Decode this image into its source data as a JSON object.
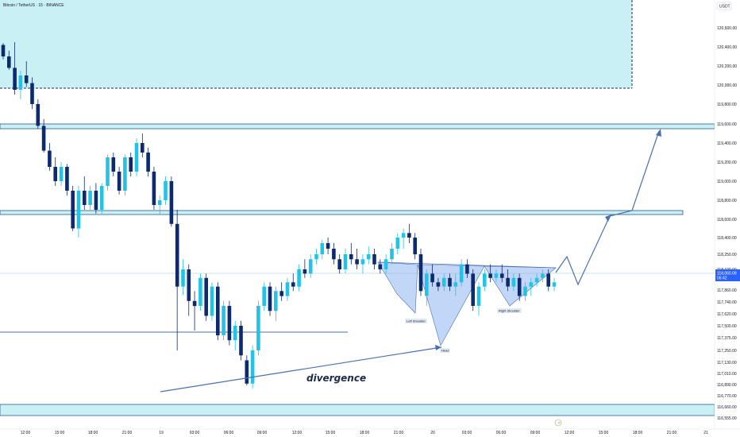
{
  "header": {
    "title": "Bitcoin / TetherUS · 15 · BINANCE",
    "currency": "USDT"
  },
  "colors": {
    "up": "#22c3e6",
    "down": "#0d2a6e",
    "zone_fill": "#c8f0f5",
    "line": "#4a6fb0",
    "pattern_fill": "#8fb4f0",
    "current": "#2962ff"
  },
  "chart_data": {
    "type": "candlestick",
    "y_axis": {
      "min": 116555,
      "max": 120700,
      "ticks": [
        "120,600.00",
        "120,400.00",
        "120,200.00",
        "120,000.00",
        "119,800.00",
        "119,600.00",
        "119,400.00",
        "119,200.00",
        "119,000.00",
        "118,800.00",
        "118,600.00",
        "118,400.00",
        "118,250.00",
        "118,100.00",
        "117,860.00",
        "117,740.00",
        "117,620.00",
        "117,500.00",
        "117,375.00",
        "117,250.00",
        "117,130.00",
        "117,010.00",
        "116,890.00",
        "116,770.00",
        "116,660.00",
        "116,555.00"
      ]
    },
    "x_axis": {
      "ticks": [
        "12:00",
        "15:00",
        "18:00",
        "21:00",
        "19",
        "03:00",
        "06:00",
        "09:00",
        "12:00",
        "15:00",
        "18:00",
        "21:00",
        "20",
        "03:00",
        "06:00",
        "09:00",
        "12:00",
        "15:00",
        "18:00",
        "21:00",
        "21"
      ]
    },
    "current_price": {
      "price": "118,060.09",
      "countdown": "06:42"
    },
    "annotations": {
      "left_shoulder": "Left Shoulder",
      "head": "Head",
      "right_shoulder": "Right Shoulder",
      "divergence": "divergence"
    },
    "candles": [
      [
        120420,
        120440,
        120270,
        120300
      ],
      [
        120300,
        120360,
        120160,
        120180
      ],
      [
        120180,
        120450,
        119900,
        119950
      ],
      [
        119950,
        120150,
        119850,
        120100
      ],
      [
        120100,
        120250,
        119980,
        120020
      ],
      [
        120020,
        120080,
        119750,
        119800
      ],
      [
        119800,
        119850,
        119550,
        119580
      ],
      [
        119580,
        119650,
        119300,
        119320
      ],
      [
        119320,
        119400,
        119110,
        119150
      ],
      [
        119150,
        119250,
        118950,
        119000
      ],
      [
        119000,
        119200,
        118950,
        119150
      ],
      [
        119150,
        119180,
        118850,
        118900
      ],
      [
        118900,
        118950,
        118470,
        118500
      ],
      [
        118500,
        118950,
        118400,
        118900
      ],
      [
        118900,
        119050,
        118700,
        118750
      ],
      [
        118750,
        118950,
        118700,
        118900
      ],
      [
        118900,
        118980,
        118660,
        118700
      ],
      [
        118700,
        118980,
        118650,
        118950
      ],
      [
        118950,
        119280,
        118900,
        119250
      ],
      [
        119250,
        119300,
        119050,
        119100
      ],
      [
        119100,
        119150,
        118860,
        118900
      ],
      [
        118900,
        119280,
        118850,
        119250
      ],
      [
        119250,
        119300,
        119050,
        119100
      ],
      [
        119100,
        119450,
        119050,
        119400
      ],
      [
        119400,
        119500,
        119250,
        119300
      ],
      [
        119300,
        119350,
        119050,
        119100
      ],
      [
        119100,
        119150,
        118700,
        118750
      ],
      [
        118750,
        118850,
        118650,
        118800
      ],
      [
        118800,
        119050,
        118750,
        119000
      ],
      [
        119000,
        119050,
        118520,
        118550
      ],
      [
        118550,
        118700,
        117250,
        117900
      ],
      [
        117900,
        118200,
        117810,
        118100
      ],
      [
        118100,
        118150,
        117600,
        117750
      ],
      [
        117750,
        117850,
        117450,
        117700
      ],
      [
        117700,
        118050,
        117650,
        118000
      ],
      [
        118000,
        118050,
        117550,
        117600
      ],
      [
        117600,
        117950,
        117550,
        117900
      ],
      [
        117900,
        117950,
        117350,
        117400
      ],
      [
        117400,
        117750,
        117350,
        117700
      ],
      [
        117700,
        117750,
        117300,
        117350
      ],
      [
        117350,
        117550,
        117250,
        117500
      ],
      [
        117500,
        117550,
        117150,
        117200
      ],
      [
        117150,
        117200,
        116880,
        116900
      ],
      [
        116900,
        117300,
        116850,
        117250
      ],
      [
        117250,
        117750,
        117200,
        117700
      ],
      [
        117700,
        117950,
        117650,
        117900
      ],
      [
        117900,
        117950,
        117600,
        117650
      ],
      [
        117650,
        117900,
        117550,
        117850
      ],
      [
        117850,
        117950,
        117750,
        117800
      ],
      [
        117800,
        118000,
        117750,
        117950
      ],
      [
        117950,
        118050,
        117850,
        117900
      ],
      [
        117900,
        118150,
        117850,
        118100
      ],
      [
        118100,
        118200,
        118000,
        118050
      ],
      [
        118050,
        118250,
        118000,
        118200
      ],
      [
        118200,
        118300,
        118150,
        118250
      ],
      [
        118250,
        118380,
        118200,
        118350
      ],
      [
        118350,
        118400,
        118250,
        118300
      ],
      [
        118300,
        118350,
        118150,
        118200
      ],
      [
        118200,
        118250,
        118050,
        118100
      ],
      [
        118100,
        118300,
        118050,
        118250
      ],
      [
        118250,
        118350,
        118150,
        118200
      ],
      [
        118200,
        118300,
        118100,
        118150
      ],
      [
        118150,
        118250,
        118050,
        118200
      ],
      [
        118200,
        118320,
        118150,
        118250
      ],
      [
        118250,
        118300,
        118100,
        118150
      ],
      [
        118150,
        118200,
        118050,
        118100
      ],
      [
        118100,
        118250,
        118050,
        118200
      ],
      [
        118200,
        118350,
        118150,
        118300
      ],
      [
        118300,
        118450,
        118250,
        118400
      ],
      [
        118400,
        118500,
        118300,
        118450
      ],
      [
        118450,
        118550,
        118350,
        118400
      ],
      [
        118400,
        118450,
        118200,
        118250
      ],
      [
        118250,
        118300,
        117800,
        117850
      ],
      [
        117800,
        118100,
        117700,
        118050
      ],
      [
        118050,
        118150,
        117900,
        117950
      ],
      [
        117950,
        118000,
        117850,
        117900
      ],
      [
        117900,
        118050,
        117850,
        118000
      ],
      [
        118000,
        118050,
        117850,
        117900
      ],
      [
        117900,
        118050,
        117800,
        117950
      ],
      [
        117950,
        118200,
        117900,
        118150
      ],
      [
        118150,
        118200,
        118000,
        118050
      ],
      [
        118050,
        118100,
        117650,
        117700
      ],
      [
        117700,
        117950,
        117600,
        117900
      ],
      [
        117900,
        118100,
        117850,
        118050
      ],
      [
        118050,
        118150,
        117950,
        118000
      ],
      [
        118000,
        118100,
        117950,
        118050
      ],
      [
        118050,
        118150,
        117950,
        118000
      ],
      [
        118000,
        118100,
        117850,
        117900
      ],
      [
        117900,
        118050,
        117850,
        118000
      ],
      [
        118000,
        118050,
        117750,
        117800
      ],
      [
        117800,
        117950,
        117750,
        117900
      ],
      [
        117900,
        118000,
        117800,
        117950
      ],
      [
        117950,
        118050,
        117900,
        118000
      ],
      [
        118000,
        118100,
        117950,
        118050
      ],
      [
        118050,
        118100,
        117850,
        117900
      ],
      [
        117900,
        118000,
        117850,
        117950
      ]
    ]
  }
}
